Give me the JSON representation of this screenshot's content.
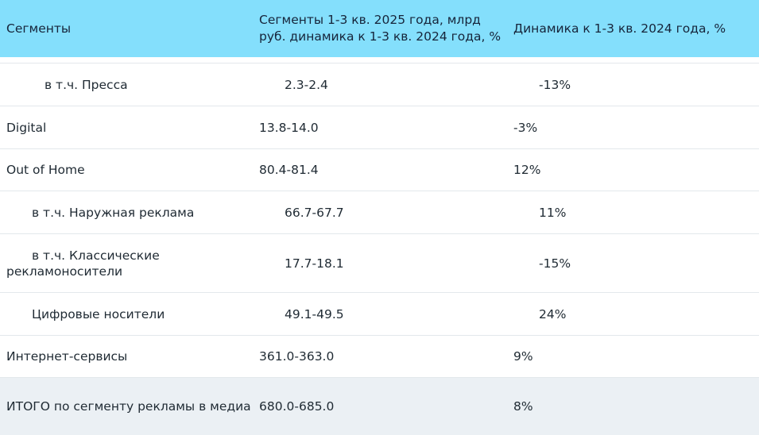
{
  "header": {
    "col1": "Сегменты",
    "col2": "Сегменты 1-3 кв. 2025 года, млрд руб. динамика к 1-3 кв. 2024 года, %",
    "col3": "Динамика к 1-3 кв. 2024 года, %"
  },
  "rows": [
    {
      "segment": "в т.ч. Пресса",
      "value": "2.3-2.4",
      "change": "-13%"
    },
    {
      "segment": "Digital",
      "value": "13.8-14.0",
      "change": "-3%"
    },
    {
      "segment": "Out of Home",
      "value": "80.4-81.4",
      "change": "12%"
    },
    {
      "segment": "в т.ч. Наружная реклама",
      "value": "66.7-67.7",
      "change": "11%"
    },
    {
      "segment": "в т.ч. Классические рекламоносители",
      "value": "17.7-18.1",
      "change": "-15%"
    },
    {
      "segment": "Цифровые носители",
      "value": "49.1-49.5",
      "change": "24%"
    },
    {
      "segment": "Интернет-сервисы",
      "value": "361.0-363.0",
      "change": "9%"
    },
    {
      "segment": "ИТОГО по сегменту рекламы в медиа",
      "value": "680.0-685.0",
      "change": "8%"
    }
  ],
  "colors": {
    "header_bg": "#84dffc",
    "total_bg": "#ebf0f4",
    "divider": "#e3e8ec"
  }
}
